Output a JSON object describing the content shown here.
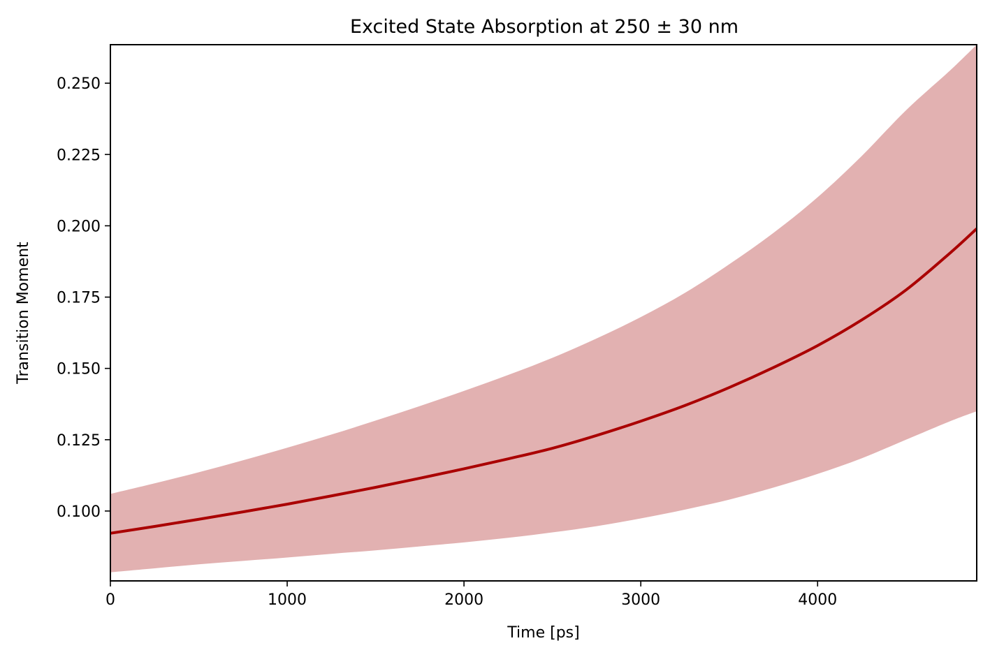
{
  "chart_data": {
    "type": "area",
    "title": "Excited State Absorption at 250 ± 30 nm",
    "xlabel": "Time [ps]",
    "ylabel": "Transition Moment",
    "xlim": [
      0,
      4900
    ],
    "ylim": [
      0.0755,
      0.2635
    ],
    "x_ticks": [
      0,
      1000,
      2000,
      3000,
      4000
    ],
    "x_tick_labels": [
      "0",
      "1000",
      "2000",
      "3000",
      "4000"
    ],
    "y_ticks": [
      0.1,
      0.125,
      0.15,
      0.175,
      0.2,
      0.225,
      0.25
    ],
    "y_tick_labels": [
      "0.100",
      "0.125",
      "0.150",
      "0.175",
      "0.200",
      "0.225",
      "0.250"
    ],
    "grid": false,
    "colors": {
      "line": "#aa0000",
      "band": "#e2b1b1"
    },
    "x": [
      0,
      250,
      500,
      750,
      1000,
      1250,
      1500,
      1750,
      2000,
      2250,
      2500,
      2750,
      3000,
      3250,
      3500,
      3750,
      4000,
      4250,
      4500,
      4750,
      4900
    ],
    "series": [
      {
        "values": [
          0.0922,
          0.0946,
          0.0971,
          0.0997,
          0.1024,
          0.1053,
          0.1083,
          0.1115,
          0.1148,
          0.1183,
          0.122,
          0.1265,
          0.1315,
          0.137,
          0.1433,
          0.1503,
          0.158,
          0.167,
          0.1775,
          0.1905,
          0.199
        ],
        "band_upper": [
          0.106,
          0.1097,
          0.1136,
          0.1178,
          0.1222,
          0.1268,
          0.1317,
          0.1368,
          0.1421,
          0.1477,
          0.1537,
          0.1605,
          0.168,
          0.1765,
          0.1865,
          0.1975,
          0.21,
          0.2245,
          0.2405,
          0.2545,
          0.2635
        ],
        "band_lower": [
          0.0785,
          0.0799,
          0.0813,
          0.0825,
          0.0837,
          0.085,
          0.0862,
          0.0876,
          0.089,
          0.0906,
          0.0925,
          0.0947,
          0.0974,
          0.1005,
          0.104,
          0.1082,
          0.113,
          0.1185,
          0.125,
          0.1315,
          0.135
        ]
      }
    ]
  }
}
